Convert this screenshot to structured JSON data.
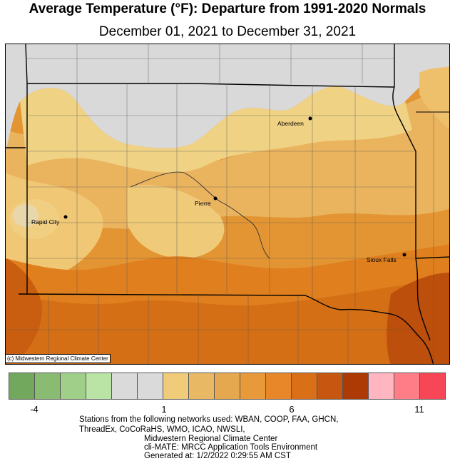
{
  "header": {
    "title": "Average Temperature (°F): Departure from 1991-2020 Normals",
    "subtitle": "December 01, 2021 to December 31, 2021"
  },
  "map": {
    "copyright": "(c) Midwestern Regional Climate Center",
    "cities": [
      {
        "id": "aberdeen",
        "name": "Aberdeen"
      },
      {
        "id": "pierre",
        "name": "Pierre"
      },
      {
        "id": "rapid-city",
        "name": "Rapid City"
      },
      {
        "id": "sioux-falls",
        "name": "Sioux Falls"
      }
    ],
    "colors": {
      "below_normal_gray": "#d9d9d9",
      "light_tan": "#f0cf7e",
      "tan": "#e9b463",
      "light_orange": "#e59b46",
      "orange": "#df8524",
      "dark_orange": "#cf6e16",
      "brown": "#bc4f0c"
    }
  },
  "legend": {
    "swatches": [
      "#72a85d",
      "#89bb72",
      "#a0cf89",
      "#b9e4a6",
      "#dadada",
      "#dadada",
      "#efcb7a",
      "#e8b864",
      "#e6a84f",
      "#e8993a",
      "#e7872a",
      "#d96f17",
      "#c75710",
      "#ad3a05",
      "#ffb6c1",
      "#ff7d87",
      "#f74655"
    ],
    "ticks": [
      "-4",
      "1",
      "6",
      "11"
    ]
  },
  "footer": {
    "networks": "Stations from the following networks used: WBAN, COOP, FAA, GHCN,",
    "networks2": "ThreadEx, CoCoRaHS, WMO, ICAO, NWSLI,",
    "center": "Midwestern Regional Climate Center",
    "tool": "cli-MATE: MRCC Application Tools Environment",
    "generated": "Generated at: 1/2/2022 0:29:55 AM CST"
  }
}
